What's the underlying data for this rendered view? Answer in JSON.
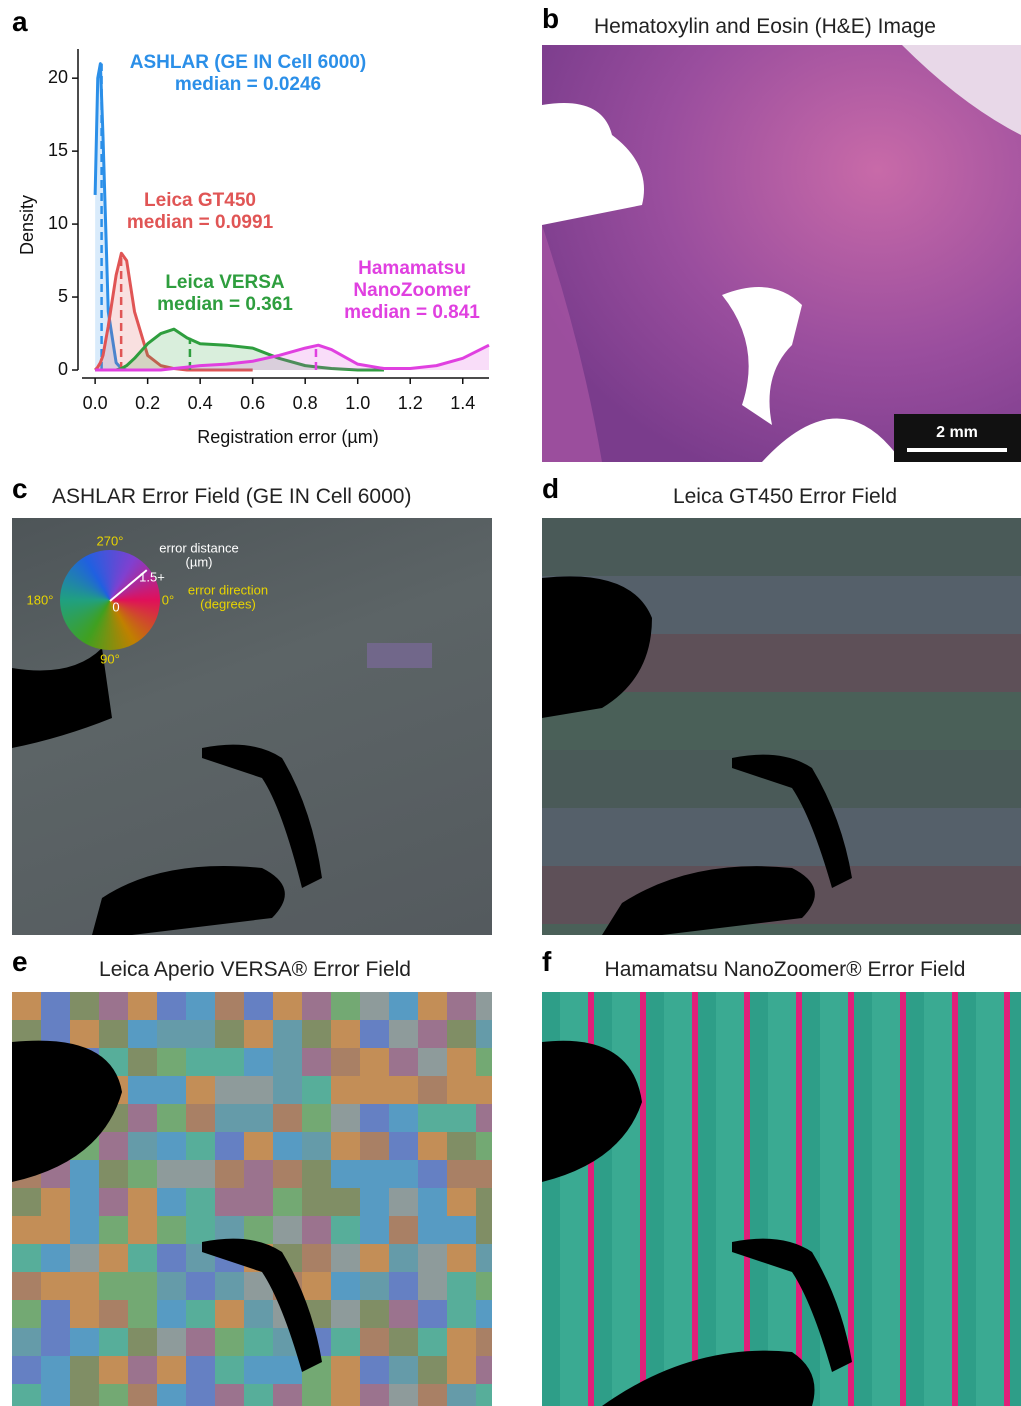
{
  "chart_panel": {
    "label": "a"
  },
  "chart_data": {
    "type": "line",
    "x_label": "Registration error (µm)",
    "y_label": "Density",
    "x": [
      0,
      0.01,
      0.02,
      0.03,
      0.05,
      0.08,
      0.1,
      0.12,
      0.15,
      0.2,
      0.25,
      0.3,
      0.35,
      0.4,
      0.5,
      0.6,
      0.7,
      0.8,
      0.85,
      0.9,
      1.0,
      1.1,
      1.2,
      1.3,
      1.4,
      1.5
    ],
    "xlim": [
      -0.05,
      1.5
    ],
    "ylim": [
      0,
      22
    ],
    "xticks": [
      {
        "value": 0,
        "label": "0.0"
      },
      0.2,
      0.4,
      0.6,
      0.8,
      {
        "value": 1,
        "label": "1.0"
      },
      1.2,
      1.4
    ],
    "yticks": [
      0,
      5,
      10,
      15,
      20
    ],
    "series": [
      {
        "name": "ASHLAR (GE IN Cell 6000)",
        "color": "#2b8fe8",
        "median": 0.0246,
        "median_label": "median = 0.0246",
        "values": [
          12,
          20,
          21,
          16,
          4,
          0.5,
          0.1,
          0,
          0,
          null,
          null,
          null,
          null,
          null,
          null,
          null,
          null,
          null,
          null,
          null,
          null,
          null,
          null,
          null,
          null,
          null
        ]
      },
      {
        "name": "Leica GT450",
        "color": "#e05555",
        "median": 0.0991,
        "median_label": "median = 0.0991",
        "values": [
          0,
          0.2,
          0.5,
          1,
          3,
          6.5,
          8,
          7.5,
          4,
          1,
          0.3,
          0.1,
          0,
          0,
          0,
          0,
          null,
          null,
          null,
          null,
          null,
          null,
          null,
          null,
          null,
          null
        ]
      },
      {
        "name": "Leica VERSA",
        "color": "#2e9e3e",
        "median": 0.361,
        "median_label": "median = 0.361",
        "values": [
          0,
          0,
          0,
          0,
          0,
          0,
          0.1,
          0.3,
          0.8,
          1.8,
          2.5,
          2.8,
          2.2,
          1.8,
          1.7,
          1.5,
          0.8,
          0.3,
          0.2,
          0.1,
          0,
          0,
          null,
          null,
          null,
          null
        ]
      },
      {
        "name": "Hamamatsu NanoZoomer",
        "color": "#e040e0",
        "median": 0.841,
        "median_label": "median = 0.841",
        "values": [
          0,
          0,
          0,
          0,
          0,
          0,
          0,
          0,
          0,
          0,
          0,
          0.1,
          0.2,
          0.3,
          0.4,
          0.6,
          1,
          1.5,
          1.7,
          1.4,
          0.4,
          0.1,
          0.1,
          0.3,
          0.8,
          1.7
        ]
      }
    ]
  },
  "image_panels": [
    {
      "label": "b",
      "title": "Hematoxylin and Eosin (H&E) Image"
    },
    {
      "label": "c",
      "title": "ASHLAR Error Field (GE IN Cell 6000)"
    },
    {
      "label": "d",
      "title": "Leica GT450 Error Field"
    },
    {
      "label": "e",
      "title": "Leica Aperio VERSA® Error Field"
    },
    {
      "label": "f",
      "title": "Hamamatsu NanoZoomer® Error Field"
    }
  ],
  "scale_bar": "2 mm",
  "color_wheel": {
    "top": "270°",
    "left": "180°",
    "right": "0°",
    "bottom": "90°",
    "center": "0",
    "radius": "1.5+",
    "distance_title": "error distance",
    "distance_unit": "(µm)",
    "direction_title": "error direction",
    "direction_unit": "(degrees)"
  }
}
